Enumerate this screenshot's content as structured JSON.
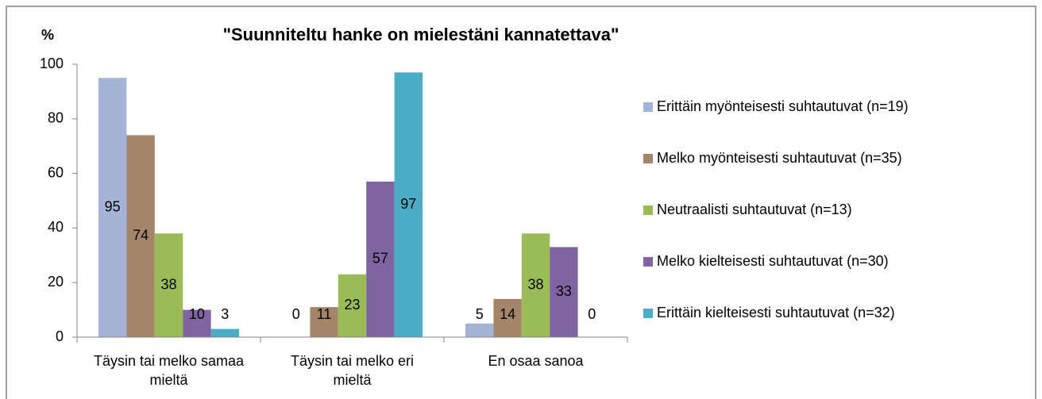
{
  "chart_data": {
    "type": "bar",
    "title": "\"Suunniteltu hanke on mielestäni kannatettava\"",
    "y_label": "%",
    "categories": [
      "Täysin tai melko samaa mieltä",
      "Täysin tai melko eri mieltä",
      "En osaa sanoa"
    ],
    "series": [
      {
        "name": "Erittäin myönteisesti suhtautuvat (n=19)",
        "color": "#a5b4d6",
        "values": [
          95,
          0,
          5
        ]
      },
      {
        "name": "Melko myönteisesti suhtautuvat (n=35)",
        "color": "#a58567",
        "values": [
          74,
          11,
          14
        ]
      },
      {
        "name": "Neutraalisti suhtautuvat (n=13)",
        "color": "#9bbb59",
        "values": [
          38,
          23,
          38
        ]
      },
      {
        "name": "Melko kielteisesti suhtautuvat (n=30)",
        "color": "#8064a2",
        "values": [
          10,
          57,
          33
        ]
      },
      {
        "name": "Erittäin kielteisesti suhtautuvat (n=32)",
        "color": "#4bacc6",
        "values": [
          3,
          97,
          0
        ]
      }
    ],
    "ylim": [
      0,
      100
    ],
    "yticks": [
      0,
      20,
      40,
      60,
      80,
      100
    ],
    "grid": false,
    "legend": "right",
    "data_labels": true
  }
}
